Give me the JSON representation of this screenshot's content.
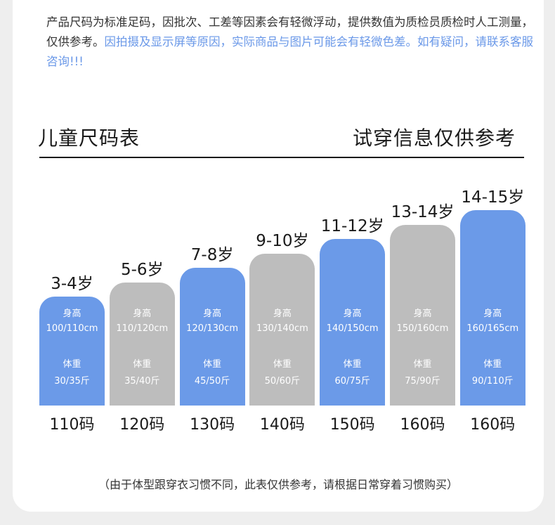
{
  "notice": {
    "line_black": "产品尺码为标准足码，因批次、工差等因素会有轻微浮动，提供数值为质检员质检时人工测量，仅供参考。",
    "line_blue": "因拍摄及显示屏等原因，实际商品与图片可能会有轻微色差。如有疑问，请联系客服咨询!!!"
  },
  "header": {
    "left_title": "儿童尺码表",
    "right_title": "试穿信息仅供参考"
  },
  "chart_data": {
    "type": "bar",
    "categories": [
      "110码",
      "120码",
      "130码",
      "140码",
      "150码",
      "160码",
      "160码"
    ],
    "series": [
      {
        "values": [
          1,
          2,
          3,
          4,
          5,
          6,
          7
        ]
      }
    ],
    "items": [
      {
        "age": "3-4岁",
        "height_label": "身高",
        "height": "100/110cm",
        "weight_label": "体重",
        "weight": "30/35斤",
        "size": "110码",
        "color": "#6b9ae8"
      },
      {
        "age": "5-6岁",
        "height_label": "身高",
        "height": "110/120cm",
        "weight_label": "体重",
        "weight": "35/40斤",
        "size": "120码",
        "color": "#bdbdbd"
      },
      {
        "age": "7-8岁",
        "height_label": "身高",
        "height": "120/130cm",
        "weight_label": "体重",
        "weight": "45/50斤",
        "size": "130码",
        "color": "#6b9ae8"
      },
      {
        "age": "9-10岁",
        "height_label": "身高",
        "height": "130/140cm",
        "weight_label": "体重",
        "weight": "50/60斤",
        "size": "140码",
        "color": "#bdbdbd"
      },
      {
        "age": "11-12岁",
        "height_label": "身高",
        "height": "140/150cm",
        "weight_label": "体重",
        "weight": "60/75斤",
        "size": "150码",
        "color": "#6b9ae8"
      },
      {
        "age": "13-14岁",
        "height_label": "身高",
        "height": "150/160cm",
        "weight_label": "体重",
        "weight": "75/90斤",
        "size": "160码",
        "color": "#bdbdbd"
      },
      {
        "age": "14-15岁",
        "height_label": "身高",
        "height": "160/165cm",
        "weight_label": "体重",
        "weight": "90/110斤",
        "size": "160码",
        "color": "#6b9ae8"
      }
    ]
  },
  "footer": {
    "note": "（由于体型跟穿衣习惯不同，此表仅供参考，请根据日常穿着习惯购买）"
  }
}
